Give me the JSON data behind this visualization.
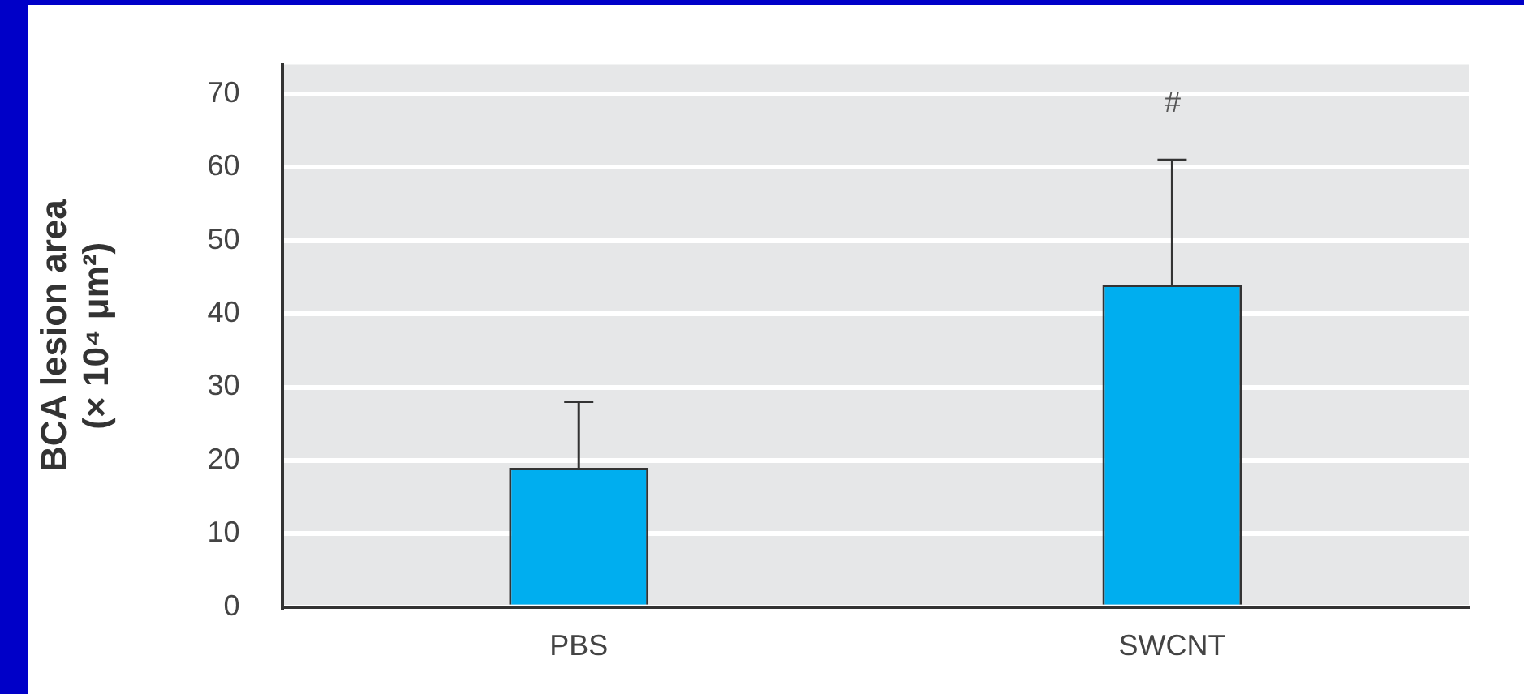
{
  "chart_data": {
    "type": "bar",
    "ylabel": "BCA lesion area (× 10⁴ μm²)",
    "categories": [
      "PBS",
      "SWCNT"
    ],
    "values": [
      19,
      44
    ],
    "errors": [
      [
        19,
        28
      ],
      [
        44,
        61
      ]
    ],
    "color": "#00aeef",
    "ylim": [
      0,
      74
    ],
    "yticks": [
      0,
      10,
      20,
      30,
      40,
      50,
      60,
      70
    ],
    "grid": "y",
    "annotations": [
      "#"
    ]
  }
}
